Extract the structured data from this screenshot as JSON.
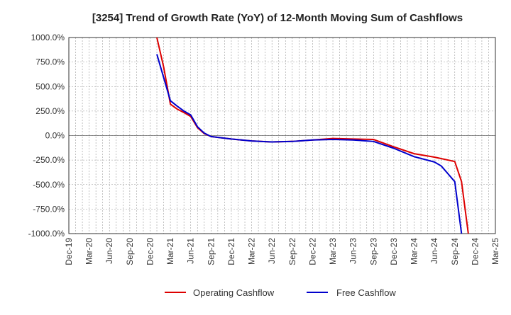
{
  "chart_data": {
    "type": "line",
    "title": "[3254]  Trend of Growth Rate (YoY) of 12-Month Moving Sum of Cashflows",
    "xlabel": "",
    "ylabel": "",
    "x_ticks": [
      "Dec-19",
      "Mar-20",
      "Jun-20",
      "Sep-20",
      "Dec-20",
      "Mar-21",
      "Jun-21",
      "Sep-21",
      "Dec-21",
      "Mar-22",
      "Jun-22",
      "Sep-22",
      "Dec-22",
      "Mar-23",
      "Jun-23",
      "Sep-23",
      "Dec-23",
      "Mar-24",
      "Jun-24",
      "Sep-24",
      "Dec-24",
      "Mar-25"
    ],
    "y_ticks": [
      "1000.0%",
      "750.0%",
      "500.0%",
      "250.0%",
      "0.0%",
      "-250.0%",
      "-500.0%",
      "-750.0%",
      "-1000.0%"
    ],
    "ylim": [
      -1000,
      1000
    ],
    "x_range": [
      "Dec-19",
      "Mar-25"
    ],
    "grid": true,
    "legend_position": "bottom",
    "colors": {
      "operating": "#dd0000",
      "free": "#0000cc",
      "grid": "#999999",
      "axis": "#333333"
    },
    "series": [
      {
        "name": "Operating Cashflow",
        "color": "#dd0000",
        "points": [
          [
            "Jan-21",
            1000
          ],
          [
            "Feb-21",
            700
          ],
          [
            "Mar-21",
            320
          ],
          [
            "Apr-21",
            270
          ],
          [
            "May-21",
            235
          ],
          [
            "Jun-21",
            195
          ],
          [
            "Jul-21",
            80
          ],
          [
            "Aug-21",
            20
          ],
          [
            "Sep-21",
            -10
          ],
          [
            "Dec-21",
            -35
          ],
          [
            "Mar-22",
            -55
          ],
          [
            "Jun-22",
            -65
          ],
          [
            "Sep-22",
            -60
          ],
          [
            "Dec-22",
            -45
          ],
          [
            "Mar-23",
            -30
          ],
          [
            "Jun-23",
            -35
          ],
          [
            "Sep-23",
            -40
          ],
          [
            "Dec-23",
            -115
          ],
          [
            "Mar-24",
            -185
          ],
          [
            "Jun-24",
            -220
          ],
          [
            "Sep-24",
            -265
          ],
          [
            "Oct-24",
            -470
          ],
          [
            "Nov-24",
            -1000
          ]
        ]
      },
      {
        "name": "Free Cashflow",
        "color": "#0000cc",
        "points": [
          [
            "Jan-21",
            830
          ],
          [
            "Mar-21",
            355
          ],
          [
            "Apr-21",
            300
          ],
          [
            "May-21",
            250
          ],
          [
            "Jun-21",
            210
          ],
          [
            "Jul-21",
            90
          ],
          [
            "Aug-21",
            25
          ],
          [
            "Sep-21",
            -10
          ],
          [
            "Dec-21",
            -35
          ],
          [
            "Mar-22",
            -55
          ],
          [
            "Jun-22",
            -65
          ],
          [
            "Sep-22",
            -60
          ],
          [
            "Dec-22",
            -45
          ],
          [
            "Mar-23",
            -40
          ],
          [
            "Jun-23",
            -45
          ],
          [
            "Sep-23",
            -60
          ],
          [
            "Dec-23",
            -130
          ],
          [
            "Mar-24",
            -215
          ],
          [
            "Jun-24",
            -270
          ],
          [
            "Jul-24",
            -310
          ],
          [
            "Aug-24",
            -390
          ],
          [
            "Sep-24",
            -470
          ],
          [
            "Oct-24",
            -1000
          ]
        ]
      }
    ]
  }
}
